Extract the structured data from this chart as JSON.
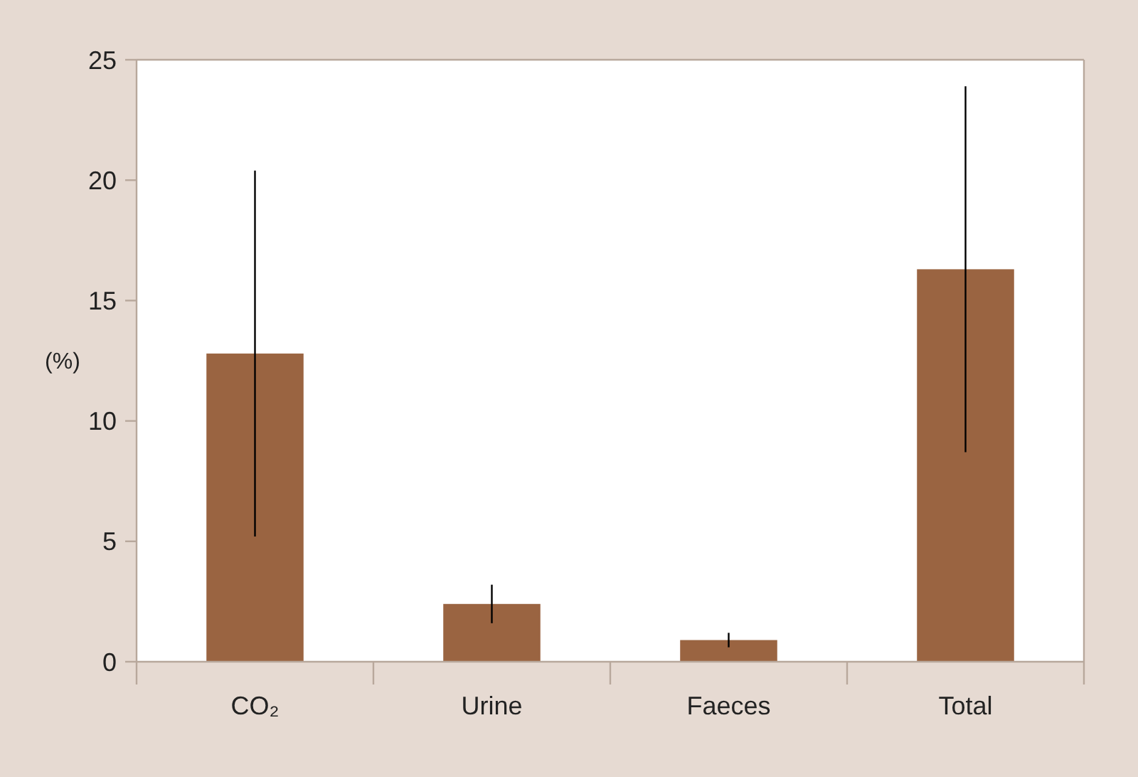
{
  "chart_data": {
    "type": "bar",
    "ylabel": "(%)",
    "categories": [
      "CO₂",
      "Urine",
      "Faeces",
      "Total"
    ],
    "values": [
      12.8,
      2.4,
      0.9,
      16.3
    ],
    "errors": [
      7.6,
      0.8,
      0.3,
      7.6
    ],
    "color": "#9a6441",
    "ylim": [
      0,
      25
    ],
    "yticks": [
      0,
      5,
      10,
      15,
      20,
      25
    ],
    "grid": false
  }
}
